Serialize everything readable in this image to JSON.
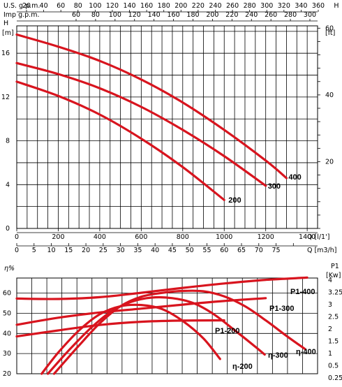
{
  "chart_data": [
    {
      "type": "line",
      "title": "",
      "grid": true,
      "top_axes": [
        {
          "label": "U.S. g.p.m.",
          "ticks": [
            20,
            40,
            60,
            80,
            100,
            120,
            140,
            160,
            180,
            200,
            220,
            240,
            260,
            280,
            300,
            320,
            340,
            360
          ]
        },
        {
          "label": "Imp g.p.m.",
          "ticks": [
            60,
            80,
            100,
            120,
            140,
            160,
            180,
            200,
            220,
            240,
            260,
            280,
            300
          ]
        }
      ],
      "x": {
        "label": "Q [l/1']",
        "ticks": [
          0,
          200,
          400,
          600,
          800,
          1000,
          1200,
          1400
        ],
        "lim": [
          0,
          1450
        ]
      },
      "x2": {
        "label": "Q [m3/h]",
        "ticks": [
          0,
          5,
          10,
          15,
          20,
          25,
          30,
          35,
          40,
          45,
          50,
          55,
          60,
          65,
          70,
          75,
          80
        ]
      },
      "y": {
        "left_label": "H",
        "left_unit": "[m]",
        "left_ticks": [
          0,
          4,
          8,
          12,
          16
        ],
        "ylim": [
          0,
          18.5
        ],
        "right_label": "H",
        "right_unit": "[ft]",
        "right_ticks": [
          20,
          40,
          60
        ]
      },
      "series": [
        {
          "name": "200",
          "x": [
            0,
            200,
            400,
            600,
            800,
            1000
          ],
          "y": [
            13.4,
            12.1,
            10.4,
            8.2,
            5.6,
            2.6
          ]
        },
        {
          "name": "300",
          "x": [
            0,
            200,
            400,
            600,
            800,
            1000,
            1200
          ],
          "y": [
            15.1,
            14.1,
            12.8,
            11.1,
            9.0,
            6.6,
            3.9
          ]
        },
        {
          "name": "400",
          "x": [
            0,
            200,
            400,
            600,
            800,
            1000,
            1200,
            1300
          ],
          "y": [
            17.7,
            16.6,
            15.3,
            13.6,
            11.5,
            9.0,
            6.2,
            4.6
          ]
        }
      ]
    },
    {
      "type": "line",
      "title": "",
      "grid": true,
      "y": {
        "left_label": "η%",
        "left_ticks": [
          20,
          30,
          40,
          50,
          60
        ],
        "ylim": [
          20,
          67.5
        ],
        "right_label": "P1",
        "right_unit": "[Kw]",
        "right_ticks": [
          "0.25",
          "0.5",
          "1",
          "1.5",
          "2",
          "2.5",
          "3",
          "3.25",
          "4"
        ]
      },
      "power_series": [
        {
          "name": "P1-200",
          "x": [
            0,
            200,
            400,
            600,
            800,
            1000
          ],
          "y": [
            38.5,
            41.5,
            44.2,
            45.8,
            46.4,
            46.5
          ]
        },
        {
          "name": "P1-300",
          "x": [
            0,
            200,
            400,
            600,
            800,
            1000,
            1200
          ],
          "y": [
            44.3,
            47.8,
            50.4,
            52.3,
            54.3,
            56.1,
            57.5
          ]
        },
        {
          "name": "P1-400",
          "x": [
            0,
            200,
            400,
            600,
            800,
            1000,
            1200,
            1400
          ],
          "y": [
            57.3,
            57.1,
            58.0,
            60.2,
            62.6,
            64.8,
            66.6,
            67.7
          ]
        }
      ],
      "efficiency_series": [
        {
          "name": "η-200",
          "x": [
            120,
            200,
            300,
            400,
            500,
            600,
            700,
            800,
            900,
            980
          ],
          "y": [
            20,
            30.5,
            41.5,
            49.5,
            53.5,
            54.1,
            52.1,
            46.2,
            37.5,
            27.3
          ]
        },
        {
          "name": "η-300",
          "x": [
            150,
            250,
            350,
            450,
            550,
            650,
            750,
            850,
            950,
            1050,
            1150,
            1195
          ],
          "y": [
            20,
            31.5,
            42,
            50.5,
            55.6,
            57.8,
            57.5,
            55.1,
            49.5,
            41.6,
            33.4,
            29.5
          ]
        },
        {
          "name": "η-400",
          "x": [
            180,
            300,
            400,
            500,
            600,
            700,
            800,
            900,
            1000,
            1100,
            1200,
            1300,
            1390
          ],
          "y": [
            20,
            34,
            45,
            53.5,
            58.2,
            60.1,
            61.1,
            60.9,
            58.4,
            53.5,
            46.5,
            38.8,
            32.2
          ]
        }
      ]
    }
  ]
}
